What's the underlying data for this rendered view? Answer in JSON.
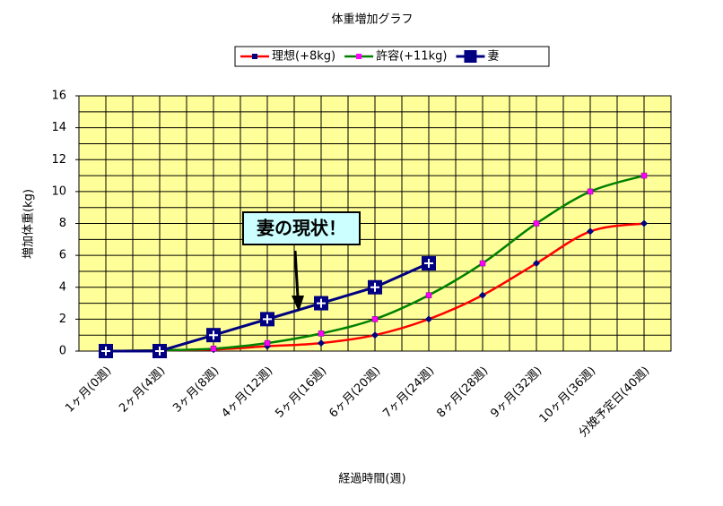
{
  "chart_data": {
    "type": "line",
    "title": "体重増加グラフ",
    "x_label": "経過時間(週)",
    "y_label": "増加体重(kg)",
    "categories": [
      "1ヶ月(0週)",
      "2ヶ月(4週)",
      "3ヶ月(8週)",
      "4ヶ月(12週)",
      "5ヶ月(16週)",
      "6ヶ月(20週)",
      "7ヶ月(24週)",
      "8ヶ月(28週)",
      "9ヶ月(32週)",
      "10ヶ月(36週)",
      "分娩予定日(40週)"
    ],
    "series": [
      {
        "name": "理想(+8kg)",
        "color": "#ff0000",
        "marker_color": "#000080",
        "values": [
          0,
          0.05,
          0.1,
          0.3,
          0.5,
          1.0,
          2.0,
          3.5,
          5.5,
          7.5,
          8
        ]
      },
      {
        "name": "許容(+11kg)",
        "color": "#008000",
        "marker_color": "#ff00ff",
        "values": [
          0,
          0.05,
          0.15,
          0.5,
          1.1,
          2.0,
          3.5,
          5.5,
          8.0,
          10.0,
          11
        ]
      },
      {
        "name": "妻",
        "color": "#000080",
        "marker_color": "#000080",
        "values": [
          0,
          0,
          1,
          2,
          3,
          4,
          5.5,
          null,
          null,
          null,
          null
        ]
      }
    ],
    "annotation": "妻の現状！",
    "ylim": [
      0,
      16
    ],
    "yticks": [
      0,
      2,
      4,
      6,
      8,
      10,
      12,
      14,
      16
    ],
    "grid": true,
    "legend": "top"
  }
}
